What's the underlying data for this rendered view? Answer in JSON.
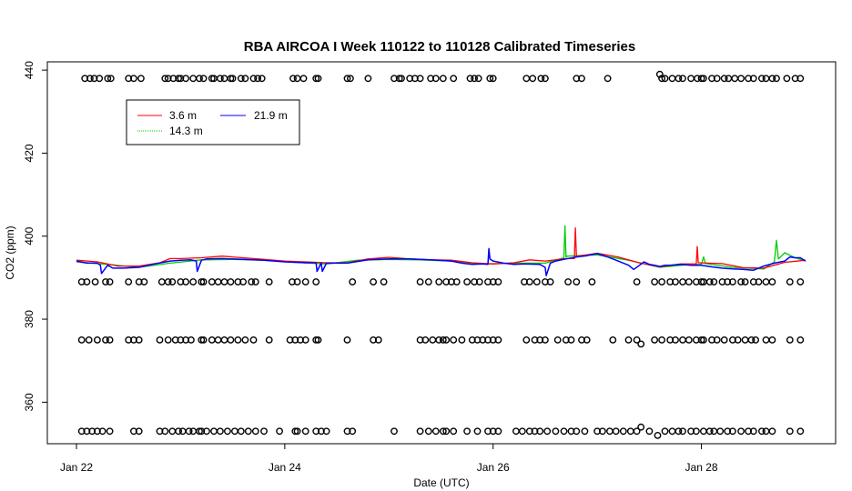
{
  "chart_data": {
    "type": "line",
    "title": "RBA AIRCOA I  Week 110122 to 110128  Calibrated Timeseries",
    "xlabel": "Date (UTC)",
    "ylabel": "CO2 (ppm)",
    "x_unit": "days (Jan 22 = 0)",
    "xlim": [
      0,
      7
    ],
    "ylim": [
      350,
      442
    ],
    "x_ticks": [
      {
        "value": 0,
        "label": "Jan 22"
      },
      {
        "value": 2,
        "label": "Jan 24"
      },
      {
        "value": 4,
        "label": "Jan 26"
      },
      {
        "value": 6,
        "label": "Jan 28"
      }
    ],
    "y_ticks": [
      {
        "value": 360,
        "label": "360"
      },
      {
        "value": 380,
        "label": "380"
      },
      {
        "value": 400,
        "label": "400"
      },
      {
        "value": 420,
        "label": "420"
      },
      {
        "value": 440,
        "label": "440"
      }
    ],
    "legend": {
      "placement": "top-left",
      "entries": [
        {
          "name": "3.6 m",
          "color": "#ff0000"
        },
        {
          "name": "21.9 m",
          "color": "#0000ff"
        },
        {
          "name": "14.3 m",
          "color": "#00cc00"
        }
      ]
    },
    "series": [
      {
        "name": "21.9 m",
        "color": "#0000ff",
        "x": [
          0.0,
          0.1,
          0.2,
          0.23,
          0.24,
          0.3,
          0.35,
          0.45,
          0.6,
          0.75,
          0.9,
          1.0,
          1.1,
          1.15,
          1.16,
          1.2,
          1.25,
          1.4,
          1.6,
          1.8,
          1.9,
          2.0,
          2.2,
          2.3,
          2.31,
          2.35,
          2.36,
          2.4,
          2.6,
          2.8,
          3.0,
          3.2,
          3.4,
          3.6,
          3.7,
          3.8,
          3.9,
          3.95,
          3.96,
          3.97,
          4.0,
          4.1,
          4.2,
          4.3,
          4.45,
          4.5,
          4.51,
          4.55,
          4.6,
          4.7,
          4.8,
          4.9,
          5.0,
          5.1,
          5.2,
          5.3,
          5.35,
          5.45,
          5.5,
          5.55,
          5.6,
          5.65,
          5.7,
          5.8,
          5.9,
          6.0,
          6.1,
          6.2,
          6.3,
          6.4,
          6.5,
          6.6,
          6.7,
          6.8,
          6.85,
          6.9,
          6.95,
          7.0
        ],
        "values": [
          394,
          393.5,
          393.5,
          393,
          391,
          393,
          392.3,
          392.3,
          392.5,
          393.3,
          394,
          394.2,
          394.3,
          394,
          391.5,
          394.2,
          394.5,
          394.6,
          394.4,
          394.2,
          394,
          393.8,
          393.6,
          393.6,
          391.5,
          393.6,
          391.5,
          393.5,
          393.5,
          394.3,
          394.5,
          394.5,
          394.3,
          394,
          393.5,
          393.2,
          393.3,
          393.2,
          397,
          394.5,
          394,
          393.5,
          393.2,
          393.3,
          393.2,
          392.5,
          390.5,
          393.5,
          394,
          394.5,
          395,
          395.3,
          395.8,
          395,
          394,
          393,
          392,
          393.8,
          393.2,
          393,
          392.7,
          393,
          393,
          393.2,
          393,
          393,
          392.6,
          392.3,
          392.1,
          392,
          391.8,
          392.8,
          393.5,
          394,
          395,
          394.8,
          394.8,
          394
        ]
      },
      {
        "name": "3.6 m",
        "color": "#ff0000",
        "x": [
          0.0,
          0.2,
          0.4,
          0.6,
          0.8,
          0.9,
          1.0,
          1.2,
          1.4,
          1.6,
          1.8,
          2.0,
          2.2,
          2.4,
          2.6,
          2.8,
          3.0,
          3.2,
          3.4,
          3.6,
          3.8,
          4.0,
          4.2,
          4.35,
          4.5,
          4.7,
          4.78,
          4.79,
          4.8,
          4.81,
          5.0,
          5.2,
          5.4,
          5.6,
          5.8,
          5.95,
          5.96,
          5.97,
          6.2,
          6.4,
          6.6,
          6.8,
          7.0
        ],
        "values": [
          394.2,
          393.8,
          392.8,
          392.8,
          393.6,
          394.6,
          394.6,
          394.8,
          395.2,
          394.8,
          394.4,
          394,
          393.8,
          393.6,
          393.6,
          394.5,
          394.9,
          394.5,
          394.3,
          394.2,
          393.6,
          393.3,
          393.6,
          394.3,
          394,
          394.6,
          394.6,
          402,
          395,
          395.2,
          395.9,
          395,
          393.6,
          392.6,
          393.3,
          393.3,
          397.5,
          393.6,
          393.4,
          392.4,
          392.3,
          393.7,
          394.2
        ]
      },
      {
        "name": "14.3 m",
        "color": "#00cc00",
        "x": [
          0.0,
          0.3,
          0.6,
          0.9,
          1.2,
          1.5,
          1.8,
          2.1,
          2.4,
          2.7,
          3.0,
          3.3,
          3.6,
          3.9,
          4.2,
          4.5,
          4.68,
          4.69,
          4.7,
          4.71,
          5.0,
          5.3,
          5.6,
          5.9,
          6.0,
          6.02,
          6.04,
          6.3,
          6.6,
          6.7,
          6.72,
          6.74,
          6.8,
          6.9,
          7.0
        ],
        "values": [
          393.8,
          393.2,
          392.5,
          393.5,
          394.3,
          394.4,
          394.2,
          393.7,
          393.3,
          394.2,
          394.4,
          394.3,
          394,
          393.3,
          393.5,
          393.5,
          394.8,
          402.5,
          395,
          395.2,
          395.5,
          394.2,
          392.5,
          393.2,
          393.2,
          395,
          393.4,
          392.5,
          392.1,
          393.8,
          399,
          394.5,
          396,
          394.8,
          394
        ]
      },
      {
        "name": "",
        "type": "scatter",
        "marker": "open-circle",
        "color": "#000000",
        "x": [
          0.08,
          0.13,
          0.17,
          0.22,
          0.3,
          0.33,
          0.5,
          0.55,
          0.62,
          0.85,
          0.88,
          0.93,
          0.98,
          1.0,
          1.05,
          1.12,
          1.18,
          1.22,
          1.3,
          1.32,
          1.38,
          1.42,
          1.48,
          1.5,
          1.58,
          1.62,
          1.7,
          1.74,
          1.78,
          2.08,
          2.12,
          2.18,
          2.3,
          2.32,
          2.6,
          2.63,
          2.8,
          3.05,
          3.1,
          3.12,
          3.2,
          3.25,
          3.3,
          3.4,
          3.45,
          3.52,
          3.62,
          3.78,
          3.82,
          3.86,
          3.97,
          4.0,
          4.32,
          4.38,
          4.46,
          4.5,
          4.8,
          4.85,
          5.1,
          5.6,
          5.62,
          5.65,
          5.72,
          5.78,
          5.82,
          5.9,
          5.96,
          6.0,
          6.02,
          6.1,
          6.15,
          6.22,
          6.26,
          6.32,
          6.38,
          6.45,
          6.5,
          6.58,
          6.62,
          6.68,
          6.72,
          6.82,
          6.9,
          6.95
        ],
        "values": [
          438,
          438,
          438,
          438,
          438,
          438,
          438,
          438,
          438,
          438,
          438,
          438,
          438,
          438,
          438,
          438,
          438,
          438,
          438,
          438,
          438,
          438,
          438,
          438,
          438,
          438,
          438,
          438,
          438,
          438,
          438,
          438,
          438,
          438,
          438,
          438,
          438,
          438,
          438,
          438,
          438,
          438,
          438,
          438,
          438,
          438,
          438,
          438,
          438,
          438,
          438,
          438,
          438,
          438,
          438,
          438,
          438,
          438,
          438,
          439,
          438,
          438,
          438,
          438,
          438,
          438,
          438,
          438,
          438,
          438,
          438,
          438,
          438,
          438,
          438,
          438,
          438,
          438,
          438,
          438,
          438,
          438,
          438,
          438
        ]
      },
      {
        "name": "",
        "type": "scatter",
        "marker": "open-circle",
        "color": "#000000",
        "x": [
          0.05,
          0.1,
          0.18,
          0.28,
          0.32,
          0.5,
          0.6,
          0.65,
          0.82,
          0.88,
          0.92,
          1.0,
          1.05,
          1.12,
          1.2,
          1.22,
          1.3,
          1.36,
          1.42,
          1.48,
          1.55,
          1.6,
          1.68,
          1.72,
          1.85,
          2.07,
          2.12,
          2.2,
          2.3,
          2.65,
          2.85,
          2.95,
          3.3,
          3.38,
          3.48,
          3.55,
          3.6,
          3.65,
          3.75,
          3.82,
          3.87,
          3.95,
          4.0,
          4.05,
          4.3,
          4.35,
          4.42,
          4.5,
          4.55,
          4.72,
          4.8,
          4.95,
          5.38,
          5.55,
          5.62,
          5.7,
          5.75,
          5.82,
          5.88,
          5.95,
          6.0,
          6.02,
          6.08,
          6.12,
          6.2,
          6.25,
          6.3,
          6.38,
          6.42,
          6.5,
          6.55,
          6.62,
          6.68,
          6.85,
          6.95
        ],
        "values": [
          389,
          389,
          389,
          389,
          389,
          389,
          389,
          389,
          389,
          389,
          389,
          389,
          389,
          389,
          389,
          389,
          389,
          389,
          389,
          389,
          389,
          389,
          389,
          389,
          389,
          389,
          389,
          389,
          389,
          389,
          389,
          389,
          389,
          389,
          389,
          389,
          389,
          389,
          389,
          389,
          389,
          389,
          389,
          389,
          389,
          389,
          389,
          389,
          389,
          389,
          389,
          389,
          389,
          389,
          389,
          389,
          389,
          389,
          389,
          389,
          389,
          389,
          389,
          389,
          389,
          389,
          389,
          389,
          389,
          389,
          389,
          389,
          389,
          389,
          389
        ]
      },
      {
        "name": "",
        "type": "scatter",
        "marker": "open-circle",
        "color": "#000000",
        "x": [
          0.05,
          0.12,
          0.2,
          0.28,
          0.32,
          0.5,
          0.55,
          0.6,
          0.8,
          0.88,
          0.95,
          1.0,
          1.05,
          1.1,
          1.2,
          1.22,
          1.3,
          1.36,
          1.42,
          1.48,
          1.55,
          1.62,
          1.7,
          1.85,
          2.05,
          2.1,
          2.15,
          2.2,
          2.3,
          2.32,
          2.6,
          2.85,
          2.9,
          3.3,
          3.35,
          3.42,
          3.48,
          3.52,
          3.55,
          3.62,
          3.7,
          3.8,
          3.85,
          3.9,
          3.95,
          4.0,
          4.05,
          4.32,
          4.4,
          4.45,
          4.5,
          4.62,
          4.7,
          4.75,
          4.85,
          4.9,
          5.15,
          5.3,
          5.38,
          5.42,
          5.55,
          5.62,
          5.7,
          5.75,
          5.82,
          5.88,
          5.95,
          6.0,
          6.02,
          6.1,
          6.15,
          6.22,
          6.3,
          6.35,
          6.42,
          6.48,
          6.52,
          6.62,
          6.68,
          6.85,
          6.95
        ],
        "values": [
          375,
          375,
          375,
          375,
          375,
          375,
          375,
          375,
          375,
          375,
          375,
          375,
          375,
          375,
          375,
          375,
          375,
          375,
          375,
          375,
          375,
          375,
          375,
          375,
          375,
          375,
          375,
          375,
          375,
          375,
          375,
          375,
          375,
          375,
          375,
          375,
          375,
          375,
          375,
          375,
          375,
          375,
          375,
          375,
          375,
          375,
          375,
          375,
          375,
          375,
          375,
          375,
          375,
          375,
          375,
          375,
          375,
          375,
          375,
          374,
          375,
          375,
          375,
          375,
          375,
          375,
          375,
          375,
          375,
          375,
          375,
          375,
          375,
          375,
          375,
          375,
          375,
          375,
          375,
          375,
          375
        ]
      },
      {
        "name": "",
        "type": "scatter",
        "marker": "open-circle",
        "color": "#000000",
        "x": [
          0.05,
          0.1,
          0.15,
          0.2,
          0.25,
          0.32,
          0.55,
          0.6,
          0.8,
          0.85,
          0.92,
          0.98,
          1.02,
          1.08,
          1.12,
          1.18,
          1.2,
          1.25,
          1.32,
          1.38,
          1.45,
          1.52,
          1.58,
          1.65,
          1.72,
          1.8,
          1.95,
          2.1,
          2.12,
          2.2,
          2.3,
          2.35,
          2.4,
          2.6,
          2.65,
          3.05,
          3.3,
          3.38,
          3.45,
          3.52,
          3.55,
          3.62,
          3.75,
          3.85,
          3.95,
          4.0,
          4.05,
          4.22,
          4.28,
          4.35,
          4.4,
          4.45,
          4.52,
          4.6,
          4.68,
          4.75,
          4.8,
          4.88,
          5.0,
          5.05,
          5.12,
          5.18,
          5.25,
          5.32,
          5.38,
          5.42,
          5.5,
          5.58,
          5.65,
          5.72,
          5.78,
          5.82,
          5.9,
          5.95,
          6.02,
          6.08,
          6.12,
          6.18,
          6.25,
          6.3,
          6.38,
          6.45,
          6.5,
          6.58,
          6.62,
          6.68,
          6.85,
          6.95
        ],
        "values": [
          353,
          353,
          353,
          353,
          353,
          353,
          353,
          353,
          353,
          353,
          353,
          353,
          353,
          353,
          353,
          353,
          353,
          353,
          353,
          353,
          353,
          353,
          353,
          353,
          353,
          353,
          353,
          353,
          353,
          353,
          353,
          353,
          353,
          353,
          353,
          353,
          353,
          353,
          353,
          353,
          353,
          353,
          353,
          353,
          353,
          353,
          353,
          353,
          353,
          353,
          353,
          353,
          353,
          353,
          353,
          353,
          353,
          353,
          353,
          353,
          353,
          353,
          353,
          353,
          353,
          354,
          353,
          352,
          353,
          353,
          353,
          353,
          353,
          353,
          353,
          353,
          353,
          353,
          353,
          353,
          353,
          353,
          353,
          353,
          353,
          353,
          353,
          353
        ]
      }
    ]
  }
}
